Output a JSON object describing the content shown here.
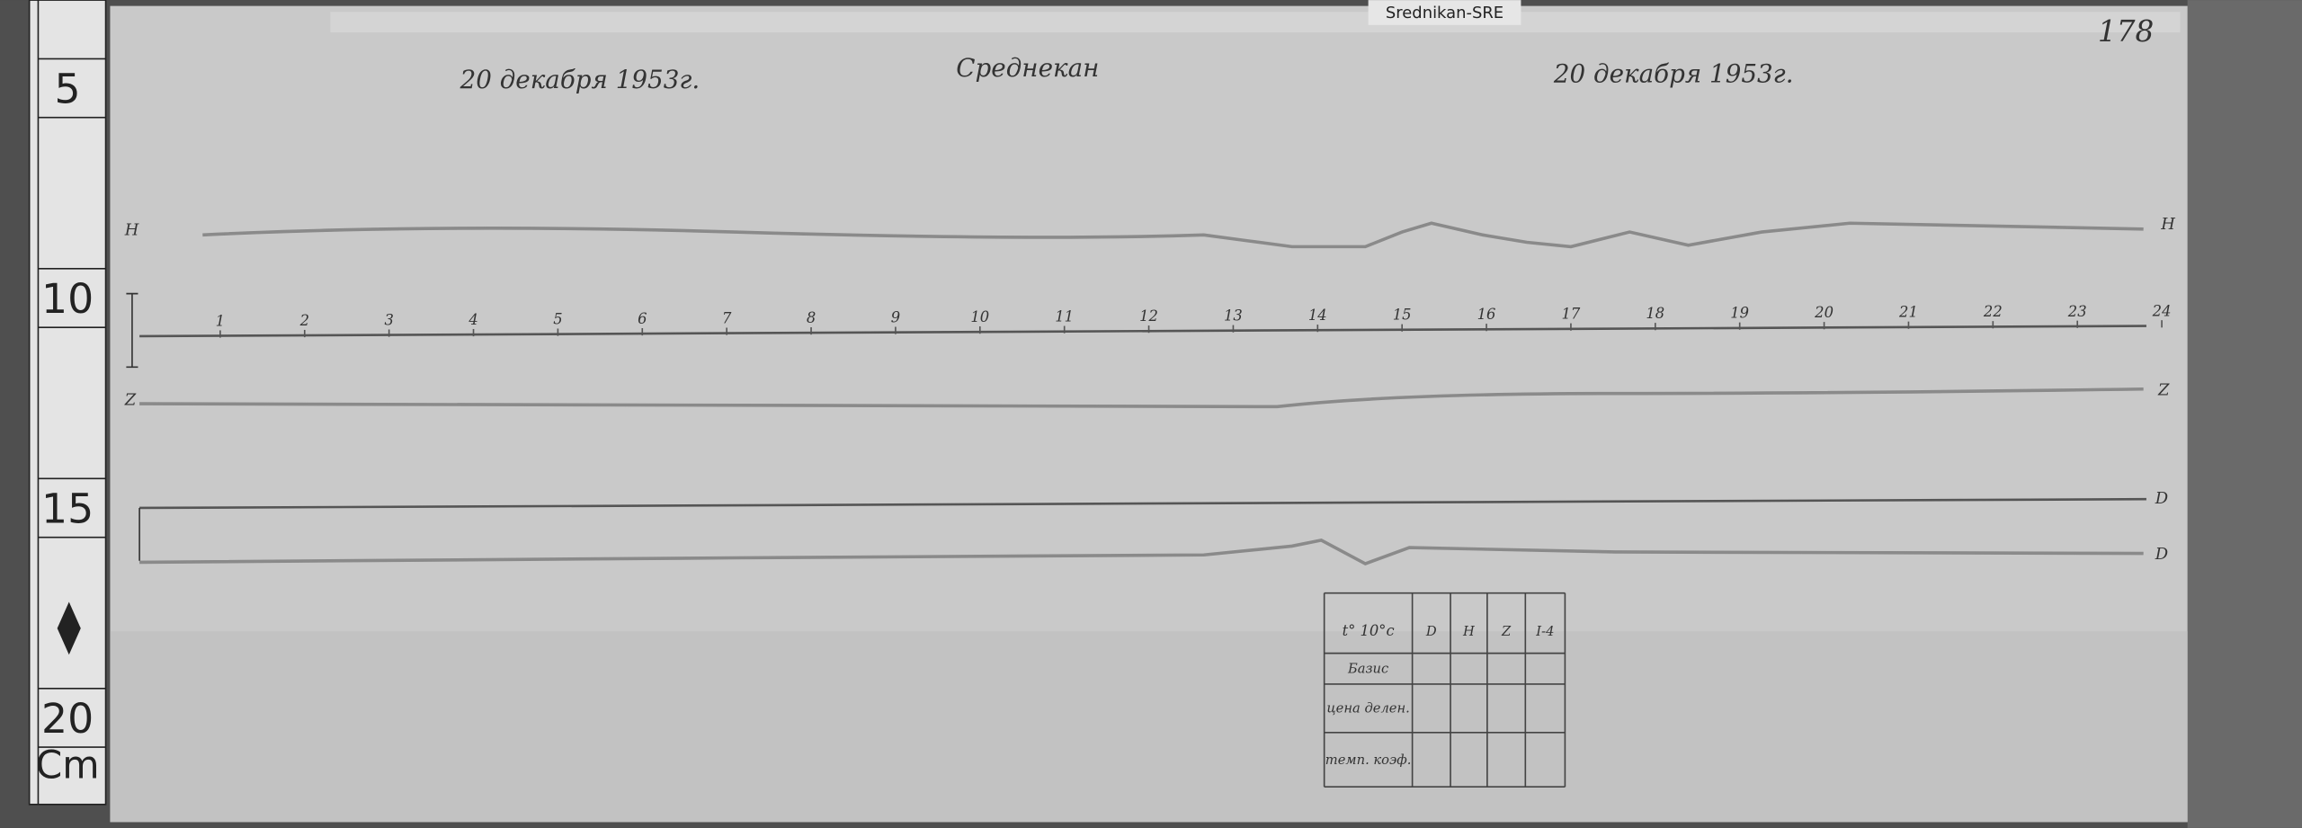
{
  "tag": "Srednikan-SRE",
  "page_number": "178",
  "ruler": {
    "marks": [
      "5",
      "10",
      "15",
      "20"
    ],
    "unit": "Cm"
  },
  "header": {
    "date_left": "20 декабря 1953г.",
    "station": "Среднекан",
    "date_right": "20 декабря 1953г."
  },
  "hours": [
    1,
    2,
    3,
    4,
    5,
    6,
    7,
    8,
    9,
    10,
    11,
    12,
    13,
    14,
    15,
    16,
    17,
    18,
    19,
    20,
    21,
    22,
    23,
    24
  ],
  "trace_labels": {
    "h": "H",
    "z": "Z",
    "d": "D"
  },
  "table": {
    "columns": [
      "t° 10°c",
      "D",
      "H",
      "Z",
      "I-4"
    ],
    "rows": [
      "Базис",
      "цена делен.",
      "темп. коэф."
    ]
  }
}
